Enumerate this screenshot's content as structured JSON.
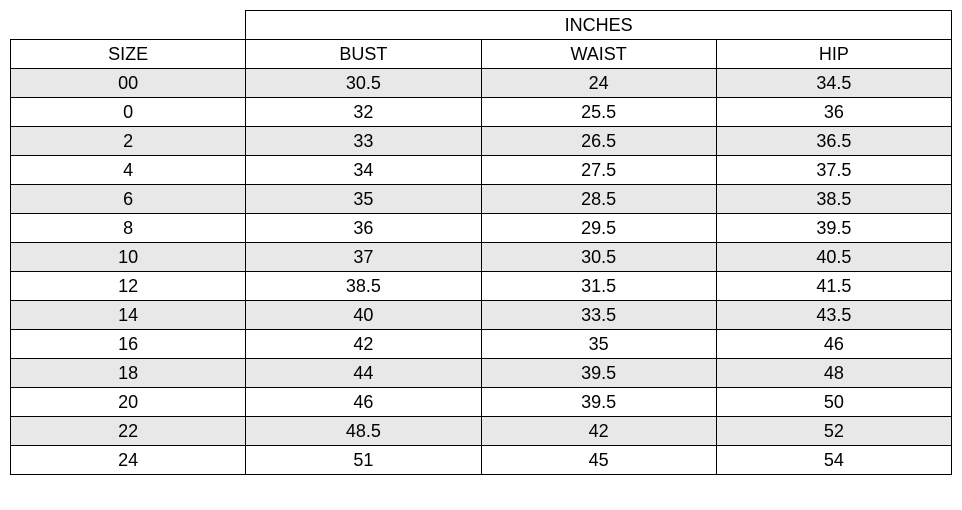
{
  "header": {
    "unit_label": "INCHES",
    "size_label": "SIZE",
    "columns": [
      "BUST",
      "WAIST",
      "HIP"
    ]
  },
  "rows": [
    {
      "size": "00",
      "bust": "30.5",
      "waist": "24",
      "hip": "34.5",
      "shaded": true
    },
    {
      "size": "0",
      "bust": "32",
      "waist": "25.5",
      "hip": "36",
      "shaded": false
    },
    {
      "size": "2",
      "bust": "33",
      "waist": "26.5",
      "hip": "36.5",
      "shaded": true
    },
    {
      "size": "4",
      "bust": "34",
      "waist": "27.5",
      "hip": "37.5",
      "shaded": false
    },
    {
      "size": "6",
      "bust": "35",
      "waist": "28.5",
      "hip": "38.5",
      "shaded": true
    },
    {
      "size": "8",
      "bust": "36",
      "waist": "29.5",
      "hip": "39.5",
      "shaded": false
    },
    {
      "size": "10",
      "bust": "37",
      "waist": "30.5",
      "hip": "40.5",
      "shaded": true
    },
    {
      "size": "12",
      "bust": "38.5",
      "waist": "31.5",
      "hip": "41.5",
      "shaded": false
    },
    {
      "size": "14",
      "bust": "40",
      "waist": "33.5",
      "hip": "43.5",
      "shaded": true
    },
    {
      "size": "16",
      "bust": "42",
      "waist": "35",
      "hip": "46",
      "shaded": false
    },
    {
      "size": "18",
      "bust": "44",
      "waist": "39.5",
      "hip": "48",
      "shaded": true
    },
    {
      "size": "20",
      "bust": "46",
      "waist": "39.5",
      "hip": "50",
      "shaded": false
    },
    {
      "size": "22",
      "bust": "48.5",
      "waist": "42",
      "hip": "52",
      "shaded": true
    },
    {
      "size": "24",
      "bust": "51",
      "waist": "45",
      "hip": "54",
      "shaded": false
    }
  ],
  "colors": {
    "row_alt_bg": "#e8e8e8",
    "border": "#000000",
    "text": "#000000",
    "background": "#ffffff"
  },
  "typography": {
    "font_family": "Segoe UI Light",
    "font_size_pt": 14,
    "font_weight": 300
  }
}
